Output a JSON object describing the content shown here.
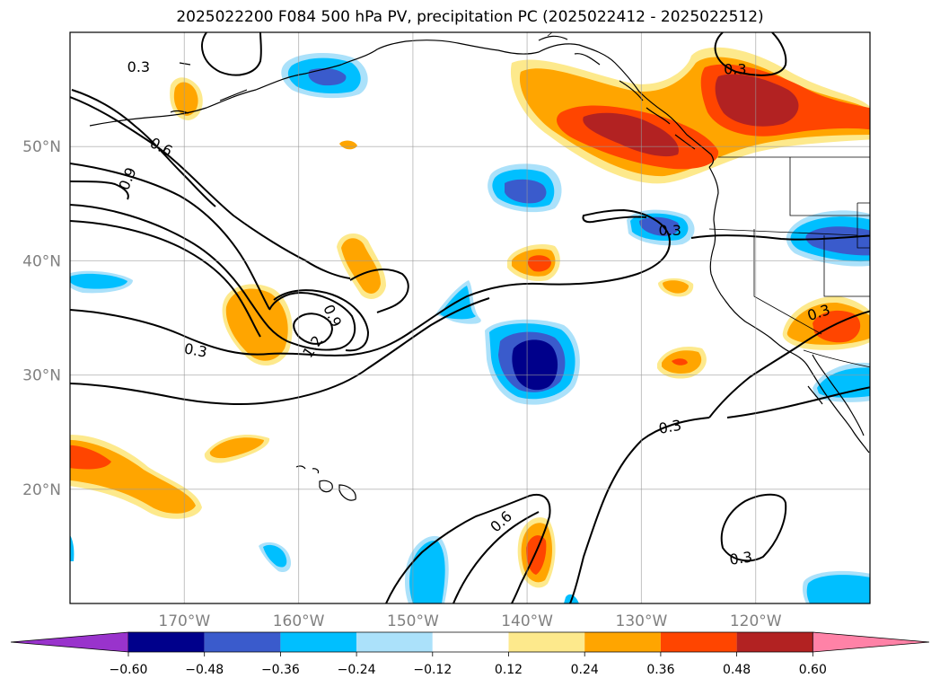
{
  "title": "2025022200 F084 500 hPa PV, precipitation PC (2025022412 - 2025022512)",
  "map": {
    "projection": "plate-carree",
    "lon_range": [
      -180,
      -110
    ],
    "lat_range": [
      10,
      60
    ],
    "gridlines": true,
    "lat_ticks": [
      {
        "lat": 50,
        "label": "50°N"
      },
      {
        "lat": 40,
        "label": "40°N"
      },
      {
        "lat": 30,
        "label": "30°N"
      },
      {
        "lat": 20,
        "label": "20°N"
      }
    ],
    "lon_ticks": [
      {
        "lon": -170,
        "label": "170°W"
      },
      {
        "lon": -160,
        "label": "160°W"
      },
      {
        "lon": -150,
        "label": "150°W"
      },
      {
        "lon": -140,
        "label": "140°W"
      },
      {
        "lon": -130,
        "label": "130°W"
      },
      {
        "lon": -120,
        "label": "120°W"
      }
    ],
    "pv_contour_labels": [
      {
        "text": "0.3",
        "lon": -174,
        "lat": 57,
        "rot": 0
      },
      {
        "text": "0.6",
        "lon": -172,
        "lat": 50,
        "rot": 28
      },
      {
        "text": "0.9",
        "lon": -175,
        "lat": 47.2,
        "rot": -68
      },
      {
        "text": "0.9",
        "lon": -157,
        "lat": 35.2,
        "rot": 65
      },
      {
        "text": "1.2",
        "lon": -158.8,
        "lat": 32.5,
        "rot": -55
      },
      {
        "text": "0.3",
        "lon": -169,
        "lat": 32.2,
        "rot": 10
      },
      {
        "text": "0.3",
        "lon": -127.5,
        "lat": 42.7,
        "rot": 0
      },
      {
        "text": "0.3",
        "lon": -114.5,
        "lat": 35.5,
        "rot": -18
      },
      {
        "text": "0.3",
        "lon": -127.5,
        "lat": 25.5,
        "rot": -10
      },
      {
        "text": "0.6",
        "lon": -142.3,
        "lat": 17.2,
        "rot": -42
      },
      {
        "text": "0.3",
        "lon": -121.3,
        "lat": 14,
        "rot": -8
      },
      {
        "text": "0.3",
        "lon": -121.8,
        "lat": 56.8,
        "rot": 0
      }
    ]
  },
  "colorbar": {
    "extend": "both",
    "colors": [
      "#9933cc",
      "#00008b",
      "#3a5bcc",
      "#00bfff",
      "#abe1fa",
      "#ffffff",
      "#fde98c",
      "#ffa500",
      "#ff4500",
      "#b22222",
      "#ff82a7"
    ],
    "tick_labels": [
      "−0.60",
      "−0.48",
      "−0.36",
      "−0.24",
      "−0.12",
      "0.12",
      "0.24",
      "0.36",
      "0.48",
      "0.60"
    ]
  }
}
